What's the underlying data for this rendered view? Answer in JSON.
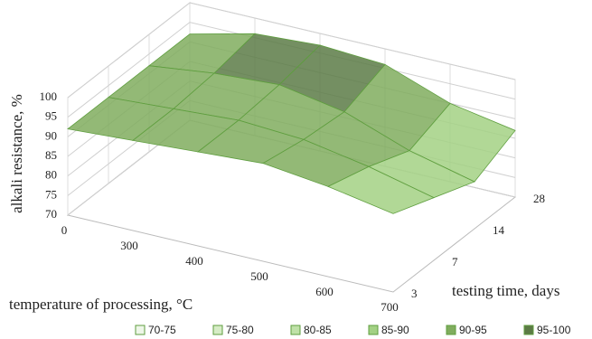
{
  "chart_data": {
    "type": "surface",
    "y_label": "alkali resistance, %",
    "x_label": "temperature of processing, °C",
    "z_label": "testing time, days",
    "categories": [
      "0",
      "300",
      "400",
      "500",
      "600",
      "700"
    ],
    "series": [
      {
        "name": "3",
        "values": [
          92,
          93,
          94,
          95,
          93,
          90
        ]
      },
      {
        "name": "7",
        "values": [
          92,
          93,
          94,
          93,
          90,
          86
        ]
      },
      {
        "name": "14",
        "values": [
          92,
          94,
          95,
          92,
          86,
          82
        ]
      },
      {
        "name": "28",
        "values": [
          92,
          96,
          97,
          96,
          90,
          87
        ]
      }
    ],
    "ylim": [
      70,
      100
    ],
    "yticks": [
      70,
      75,
      80,
      85,
      90,
      95,
      100
    ],
    "grid": true,
    "bands": [
      {
        "label": "70-75",
        "color": "#eef6e8"
      },
      {
        "label": "75-80",
        "color": "#d6ecc6"
      },
      {
        "label": "80-85",
        "color": "#bfe1a8"
      },
      {
        "label": "85-90",
        "color": "#a3d184"
      },
      {
        "label": "90-95",
        "color": "#80ad5e"
      },
      {
        "label": "95-100",
        "color": "#5c7b46"
      }
    ]
  }
}
